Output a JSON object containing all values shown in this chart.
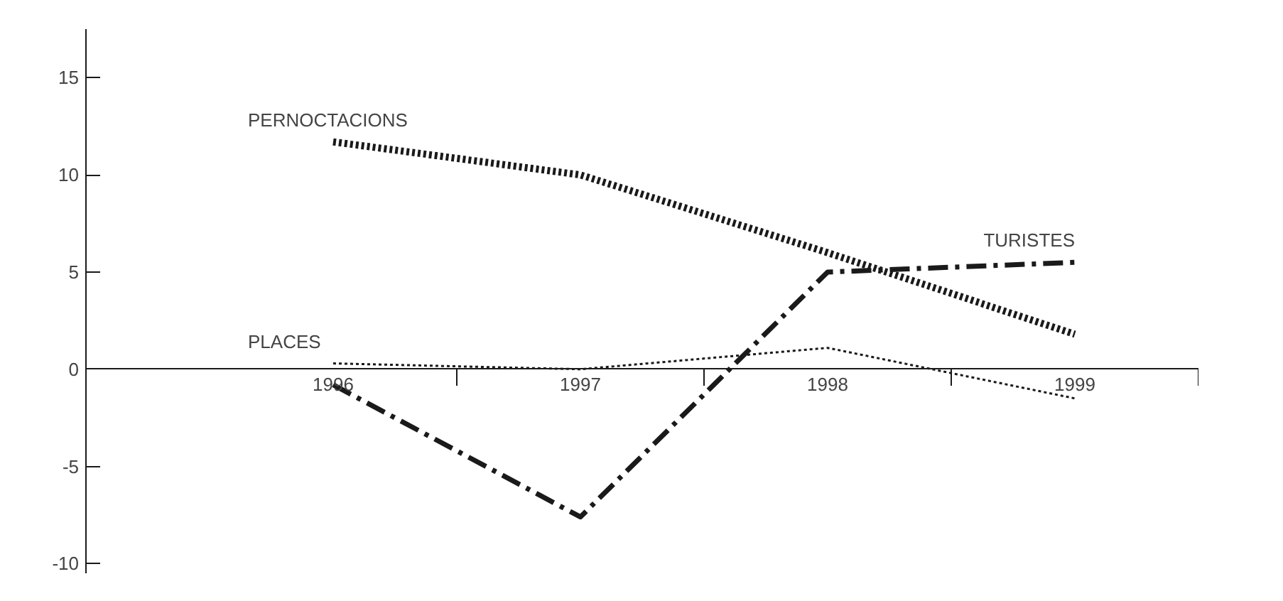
{
  "chart_data": {
    "type": "line",
    "categories": [
      "1996",
      "1997",
      "1998",
      "1999"
    ],
    "series": [
      {
        "name": "PERNOCTACIONS",
        "color": "#1a1a1a",
        "values": [
          11.7,
          10.0,
          6.0,
          1.8
        ],
        "line_style": "dotted"
      },
      {
        "name": "TURISTES",
        "color": "#1a1a1a",
        "values": [
          -0.8,
          -7.6,
          5.0,
          5.5
        ],
        "line_style": "dashdot"
      },
      {
        "name": "PLACES",
        "color": "#1a1a1a",
        "values": [
          0.3,
          0.0,
          1.1,
          -1.5
        ],
        "line_style": "dotted"
      }
    ],
    "ylim": [
      -10.5,
      17.5
    ],
    "yticks": [
      -10,
      -5,
      0,
      5,
      10,
      15
    ],
    "grid": false,
    "marker": "none"
  }
}
